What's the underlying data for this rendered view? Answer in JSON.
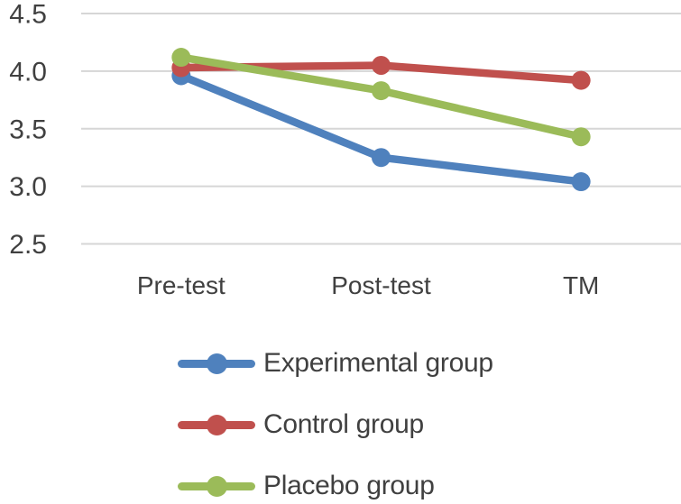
{
  "colors": {
    "background": "#ffffff",
    "gridline": "#d6d6d6",
    "axis_text": "#404040"
  },
  "chart_data": {
    "type": "line",
    "title": "",
    "xlabel": "",
    "ylabel": "",
    "categories": [
      "Pre-test",
      "Post-test",
      "TM"
    ],
    "series": [
      {
        "name": "Experimental group",
        "color": "#4F81BD",
        "values": [
          3.96,
          3.25,
          3.04
        ]
      },
      {
        "name": "Control group",
        "color": "#C0504D",
        "values": [
          4.03,
          4.05,
          3.92
        ]
      },
      {
        "name": "Placebo group",
        "color": "#9BBB59",
        "values": [
          4.12,
          3.83,
          3.43
        ]
      }
    ],
    "ylim": [
      2.5,
      4.5
    ],
    "yticks": [
      4.5,
      4.0,
      3.5,
      3.0,
      2.5
    ],
    "ytick_labels": [
      "4.5",
      "4.0",
      "3.5",
      "3.0",
      "2.5"
    ],
    "grid": "horizontal",
    "marker": "circle",
    "legend_position": "bottom-left"
  }
}
